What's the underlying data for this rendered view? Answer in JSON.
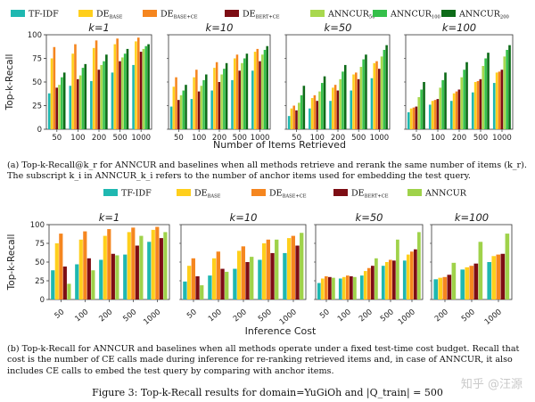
{
  "figure_caption": "Figure 3: Top-k-Recall results for domain=YuGiOh and |Q_train| = 500",
  "watermark": "知乎 @汪源",
  "colors": {
    "TF-IDF": "#1fb8b1",
    "DE_BASE": "#ffcf1c",
    "DE_BASE+CE": "#f5861f",
    "DE_BERT+CE": "#7d0d14",
    "ANNCUR_50": "#a8d84e",
    "ANNCUR_100": "#35c04a",
    "ANNCUR_200": "#0d6b18",
    "ANNCUR": "#9fd24a"
  },
  "caption_a": "(a) Top-k-Recall@k_r for ANNCUR and baselines when all methods retrieve and rerank the same number of items (k_r). The subscript k_i in ANNCUR_k_i refers to the number of anchor items used for embedding the test query.",
  "caption_b": "(b) Top-k-Recall for ANNCUR and baselines when all methods operate under a fixed test-time cost budget. Recall that cost is the number of CE calls made during inference for re-ranking retrieved items and, in case of ANNCUR, it also includes CE calls to embed the test query by comparing with anchor items.",
  "chart_data": [
    {
      "id": "a",
      "type": "bar",
      "ylabel": "Top-k-Recall",
      "xlabel": "Number of Items Retrieved",
      "ylim": [
        0,
        100
      ],
      "yticks": [
        0,
        25,
        50,
        75,
        100
      ],
      "legend": [
        {
          "key": "TF-IDF",
          "label": "TF-IDF"
        },
        {
          "key": "DE_BASE",
          "label": "DE",
          "sub": "BASE"
        },
        {
          "key": "DE_BASE+CE",
          "label": "DE",
          "sub": "BASE+CE"
        },
        {
          "key": "DE_BERT+CE",
          "label": "DE",
          "sub": "BERT+CE"
        },
        {
          "key": "ANNCUR_50",
          "label": "ANNCUR",
          "sub": "50"
        },
        {
          "key": "ANNCUR_100",
          "label": "ANNCUR",
          "sub": "100"
        },
        {
          "key": "ANNCUR_200",
          "label": "ANNCUR",
          "sub": "200"
        }
      ],
      "panels": [
        {
          "title": "k=1",
          "categories": [
            "50",
            "100",
            "200",
            "500",
            "1000"
          ],
          "series": [
            {
              "key": "TF-IDF",
              "values": [
                38,
                46,
                51,
                60,
                68
              ]
            },
            {
              "key": "DE_BASE",
              "values": [
                75,
                80,
                86,
                90,
                93
              ]
            },
            {
              "key": "DE_BASE+CE",
              "values": [
                87,
                90,
                94,
                96,
                97
              ]
            },
            {
              "key": "DE_BERT+CE",
              "values": [
                44,
                53,
                63,
                72,
                82
              ]
            },
            {
              "key": "ANNCUR_50",
              "values": [
                47,
                57,
                68,
                76,
                85
              ]
            },
            {
              "key": "ANNCUR_100",
              "values": [
                55,
                65,
                72,
                80,
                88
              ]
            },
            {
              "key": "ANNCUR_200",
              "values": [
                60,
                69,
                79,
                85,
                90
              ]
            }
          ]
        },
        {
          "title": "k=10",
          "categories": [
            "50",
            "100",
            "200",
            "500",
            "1000"
          ],
          "series": [
            {
              "key": "TF-IDF",
              "values": [
                24,
                32,
                41,
                52,
                62
              ]
            },
            {
              "key": "DE_BASE",
              "values": [
                45,
                55,
                65,
                75,
                82
              ]
            },
            {
              "key": "DE_BASE+CE",
              "values": [
                55,
                63,
                71,
                79,
                85
              ]
            },
            {
              "key": "DE_BERT+CE",
              "values": [
                31,
                40,
                50,
                62,
                72
              ]
            },
            {
              "key": "ANNCUR_50",
              "values": [
                36,
                46,
                58,
                70,
                79
              ]
            },
            {
              "key": "ANNCUR_100",
              "values": [
                41,
                52,
                64,
                75,
                84
              ]
            },
            {
              "key": "ANNCUR_200",
              "values": [
                47,
                58,
                70,
                80,
                88
              ]
            }
          ]
        },
        {
          "title": "k=50",
          "categories": [
            "50",
            "100",
            "200",
            "500",
            "1000"
          ],
          "series": [
            {
              "key": "TF-IDF",
              "values": [
                14,
                22,
                30,
                41,
                54
              ]
            },
            {
              "key": "DE_BASE",
              "values": [
                22,
                33,
                44,
                58,
                70
              ]
            },
            {
              "key": "DE_BASE+CE",
              "values": [
                25,
                36,
                47,
                60,
                72
              ]
            },
            {
              "key": "DE_BERT+CE",
              "values": [
                20,
                30,
                41,
                53,
                64
              ]
            },
            {
              "key": "ANNCUR_50",
              "values": [
                28,
                40,
                53,
                66,
                77
              ]
            },
            {
              "key": "ANNCUR_100",
              "values": [
                36,
                49,
                61,
                74,
                84
              ]
            },
            {
              "key": "ANNCUR_200",
              "values": [
                46,
                56,
                68,
                79,
                89
              ]
            }
          ]
        },
        {
          "title": "k=100",
          "categories": [
            "50",
            "100",
            "200",
            "500",
            "1000"
          ],
          "series": [
            {
              "key": "TF-IDF",
              "values": [
                18,
                26,
                30,
                39,
                49
              ]
            },
            {
              "key": "DE_BASE",
              "values": [
                22,
                30,
                38,
                50,
                60
              ]
            },
            {
              "key": "DE_BASE+CE",
              "values": [
                23,
                31,
                40,
                51,
                61
              ]
            },
            {
              "key": "DE_BERT+CE",
              "values": [
                24,
                32,
                42,
                53,
                63
              ]
            },
            {
              "key": "ANNCUR_50",
              "values": [
                34,
                44,
                55,
                67,
                77
              ]
            },
            {
              "key": "ANNCUR_100",
              "values": [
                42,
                52,
                63,
                75,
                84
              ]
            },
            {
              "key": "ANNCUR_200",
              "values": [
                50,
                60,
                71,
                81,
                89
              ]
            }
          ]
        }
      ]
    },
    {
      "id": "b",
      "type": "bar",
      "ylabel": "Top-k-Recall",
      "xlabel": "Inference Cost",
      "ylim": [
        0,
        100
      ],
      "yticks": [
        0,
        25,
        50,
        75,
        100
      ],
      "legend": [
        {
          "key": "TF-IDF",
          "label": "TF-IDF"
        },
        {
          "key": "DE_BASE",
          "label": "DE",
          "sub": "BASE"
        },
        {
          "key": "DE_BASE+CE",
          "label": "DE",
          "sub": "BASE+CE"
        },
        {
          "key": "DE_BERT+CE",
          "label": "DE",
          "sub": "BERT+CE"
        },
        {
          "key": "ANNCUR",
          "label": "ANNCUR"
        }
      ],
      "panels": [
        {
          "title": "k=1",
          "categories": [
            "50",
            "100",
            "200",
            "500",
            "1000"
          ],
          "series": [
            {
              "key": "TF-IDF",
              "values": [
                39,
                47,
                53,
                60,
                77
              ]
            },
            {
              "key": "DE_BASE",
              "values": [
                75,
                80,
                85,
                90,
                93
              ]
            },
            {
              "key": "DE_BASE+CE",
              "values": [
                88,
                91,
                94,
                96,
                97
              ]
            },
            {
              "key": "DE_BERT+CE",
              "values": [
                44,
                55,
                61,
                72,
                82
              ]
            },
            {
              "key": "ANNCUR",
              "values": [
                21,
                39,
                59,
                85,
                90
              ]
            }
          ]
        },
        {
          "title": "k=10",
          "categories": [
            "50",
            "100",
            "200",
            "500",
            "1000"
          ],
          "series": [
            {
              "key": "TF-IDF",
              "values": [
                24,
                32,
                41,
                53,
                62
              ]
            },
            {
              "key": "DE_BASE",
              "values": [
                45,
                55,
                65,
                75,
                82
              ]
            },
            {
              "key": "DE_BASE+CE",
              "values": [
                55,
                64,
                71,
                80,
                85
              ]
            },
            {
              "key": "DE_BERT+CE",
              "values": [
                31,
                41,
                50,
                62,
                72
              ]
            },
            {
              "key": "ANNCUR",
              "values": [
                19,
                37,
                57,
                80,
                89
              ]
            }
          ]
        },
        {
          "title": "k=50",
          "categories": [
            "50",
            "100",
            "200",
            "500",
            "1000"
          ],
          "series": [
            {
              "key": "TF-IDF",
              "values": [
                22,
                28,
                32,
                45,
                52
              ]
            },
            {
              "key": "DE_BASE",
              "values": [
                28,
                30,
                38,
                50,
                60
              ]
            },
            {
              "key": "DE_BASE+CE",
              "values": [
                31,
                32,
                42,
                53,
                64
              ]
            },
            {
              "key": "DE_BERT+CE",
              "values": [
                30,
                31,
                45,
                52,
                67
              ]
            },
            {
              "key": "ANNCUR",
              "values": [
                29,
                30,
                55,
                80,
                90
              ]
            }
          ]
        },
        {
          "title": "k=100",
          "categories": [
            "200",
            "500",
            "1000"
          ],
          "series": [
            {
              "key": "TF-IDF",
              "values": [
                27,
                40,
                50
              ]
            },
            {
              "key": "DE_BASE",
              "values": [
                29,
                43,
                58
              ]
            },
            {
              "key": "DE_BASE+CE",
              "values": [
                30,
                45,
                60
              ]
            },
            {
              "key": "DE_BERT+CE",
              "values": [
                33,
                48,
                61
              ]
            },
            {
              "key": "ANNCUR",
              "values": [
                49,
                77,
                88
              ]
            }
          ]
        }
      ]
    }
  ]
}
